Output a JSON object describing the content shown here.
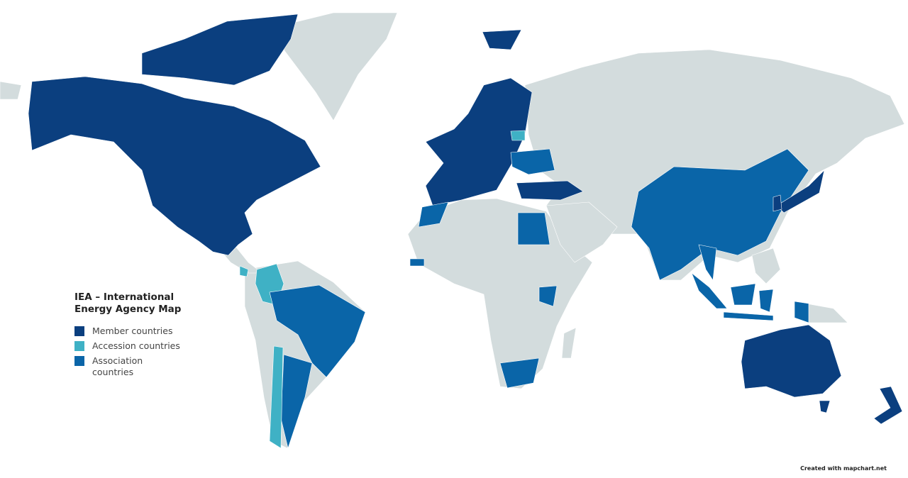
{
  "title": "IEA – International Energy Agency Map",
  "legend": [
    {
      "label": "Member countries",
      "color": "#0b3f7f"
    },
    {
      "label": "Accession countries",
      "color": "#3fb1c5"
    },
    {
      "label": "Association countries",
      "color": "#0a65a8"
    }
  ],
  "colors": {
    "other": "#d3dcdd",
    "background": "#ffffff"
  },
  "credit": "Created with mapchart.net"
}
